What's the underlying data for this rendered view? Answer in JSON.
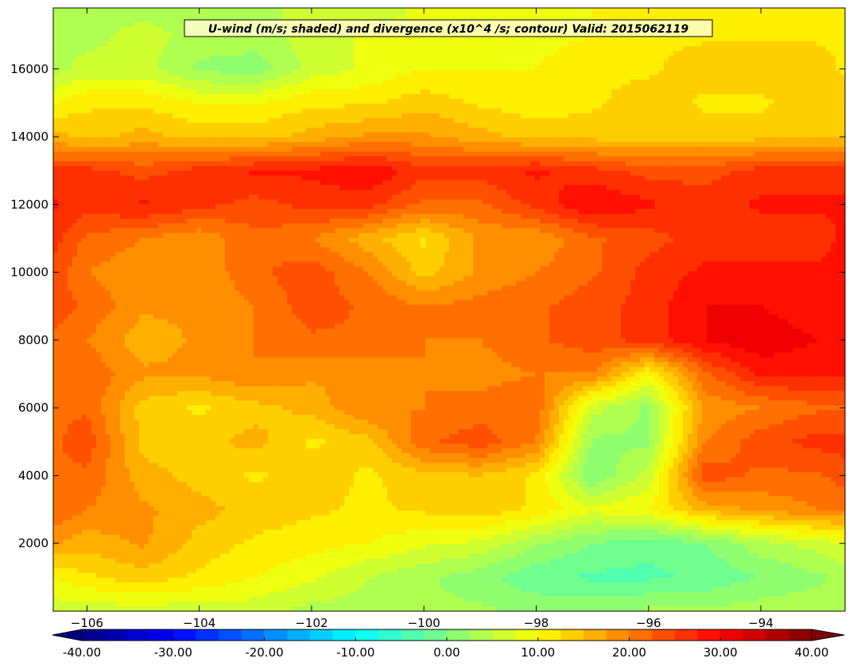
{
  "chart_data": {
    "type": "heatmap",
    "title": "U-wind (m/s; shaded) and divergence (x10^4 /s; contour) Valid: 2015062119",
    "xlabel": "",
    "ylabel": "",
    "xlim": [
      -106.6,
      -92.5
    ],
    "ylim": [
      0,
      17800
    ],
    "x_ticks": [
      -106,
      -104,
      -102,
      -100,
      -98,
      -96,
      -94
    ],
    "y_ticks": [
      2000,
      4000,
      6000,
      8000,
      10000,
      12000,
      14000,
      16000
    ],
    "colorbar": {
      "range": [
        -40,
        40
      ],
      "step": 2.5,
      "tick_values": [
        -40,
        -30,
        -20,
        -10,
        0,
        10,
        20,
        30,
        40
      ],
      "tick_labels": [
        "-40.00",
        "-30.00",
        "-20.00",
        "-10.00",
        "0.00",
        "10.00",
        "20.00",
        "30.00",
        "40.00"
      ],
      "extend": "both"
    },
    "field_units": "m/s",
    "grid_x": [
      -106.6,
      -106,
      -105,
      -104,
      -103,
      -102,
      -101,
      -100,
      -99,
      -98,
      -97,
      -96,
      -95,
      -94,
      -93,
      -92.5
    ],
    "grid_y": [
      0,
      1000,
      2000,
      3000,
      4000,
      5000,
      6000,
      7000,
      8000,
      9000,
      10000,
      11000,
      12000,
      13000,
      14000,
      15000,
      16000,
      17000,
      17800
    ],
    "values": [
      [
        6,
        6,
        6,
        6,
        6,
        4,
        4,
        3,
        3,
        2,
        2,
        3,
        3,
        4,
        4,
        4
      ],
      [
        10,
        12,
        14,
        12,
        10,
        8,
        5,
        3,
        1,
        -2,
        -3,
        -3,
        -2,
        0,
        2,
        3
      ],
      [
        18,
        16,
        18,
        14,
        12,
        11,
        10,
        8,
        7,
        3,
        0,
        -2,
        0,
        4,
        6,
        8
      ],
      [
        22,
        20,
        18,
        16,
        14,
        13,
        12,
        13,
        14,
        12,
        8,
        10,
        16,
        18,
        20,
        20
      ],
      [
        22,
        22,
        16,
        14,
        12,
        14,
        12,
        14,
        15,
        12,
        0,
        6,
        24,
        22,
        22,
        24
      ],
      [
        22,
        24,
        14,
        14,
        16,
        12,
        14,
        22,
        24,
        20,
        2,
        2,
        20,
        24,
        26,
        26
      ],
      [
        22,
        22,
        14,
        12,
        14,
        16,
        20,
        20,
        21,
        22,
        6,
        2,
        18,
        20,
        22,
        22
      ],
      [
        22,
        22,
        18,
        18,
        20,
        18,
        18,
        20,
        19,
        20,
        20,
        10,
        22,
        28,
        28,
        28
      ],
      [
        22,
        20,
        16,
        18,
        20,
        22,
        22,
        20,
        20,
        22,
        24,
        26,
        30,
        32,
        30,
        30
      ],
      [
        24,
        22,
        18,
        18,
        20,
        24,
        22,
        20,
        21,
        22,
        24,
        26,
        30,
        30,
        28,
        30
      ],
      [
        24,
        20,
        18,
        18,
        22,
        24,
        20,
        14,
        18,
        20,
        22,
        26,
        28,
        28,
        28,
        30
      ],
      [
        26,
        22,
        20,
        18,
        22,
        20,
        16,
        12,
        18,
        18,
        22,
        24,
        26,
        26,
        26,
        28
      ],
      [
        28,
        26,
        28,
        26,
        24,
        26,
        26,
        22,
        22,
        26,
        30,
        28,
        26,
        28,
        28,
        28
      ],
      [
        26,
        26,
        24,
        26,
        28,
        28,
        30,
        26,
        26,
        28,
        26,
        24,
        24,
        26,
        26,
        26
      ],
      [
        16,
        14,
        16,
        14,
        14,
        16,
        18,
        18,
        16,
        14,
        14,
        14,
        14,
        14,
        14,
        14
      ],
      [
        10,
        12,
        12,
        10,
        10,
        12,
        12,
        14,
        12,
        11,
        12,
        14,
        12,
        12,
        14,
        14
      ],
      [
        4,
        6,
        6,
        2,
        1,
        6,
        8,
        10,
        10,
        10,
        12,
        12,
        14,
        14,
        14,
        12
      ],
      [
        4,
        4,
        6,
        4,
        4,
        6,
        8,
        8,
        8,
        9,
        10,
        12,
        12,
        12,
        12,
        12
      ],
      [
        4,
        4,
        4,
        4,
        4,
        6,
        6,
        8,
        8,
        10,
        10,
        10,
        10,
        10,
        10,
        10
      ]
    ]
  }
}
